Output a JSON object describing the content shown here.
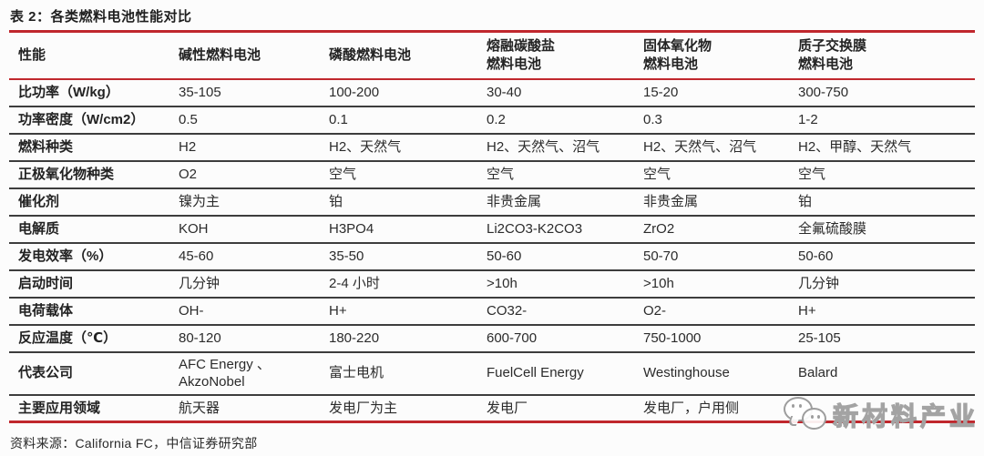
{
  "title": "表 2：各类燃料电池性能对比",
  "table": {
    "columns": [
      "性能",
      "碱性燃料电池",
      "磷酸燃料电池",
      "熔融碳酸盐\n燃料电池",
      "固体氧化物\n燃料电池",
      "质子交换膜\n燃料电池"
    ],
    "rows": [
      {
        "label": "比功率（W/kg）",
        "values": [
          "35-105",
          "100-200",
          "30-40",
          "15-20",
          "300-750"
        ]
      },
      {
        "label": "功率密度（W/cm2）",
        "values": [
          "0.5",
          "0.1",
          "0.2",
          "0.3",
          "1-2"
        ]
      },
      {
        "label": "燃料种类",
        "values": [
          "H2",
          "H2、天然气",
          "H2、天然气、沼气",
          "H2、天然气、沼气",
          "H2、甲醇、天然气"
        ]
      },
      {
        "label": "正极氧化物种类",
        "values": [
          "O2",
          "空气",
          "空气",
          "空气",
          "空气"
        ]
      },
      {
        "label": "催化剂",
        "values": [
          "镍为主",
          "铂",
          "非贵金属",
          "非贵金属",
          "铂"
        ]
      },
      {
        "label": "电解质",
        "values": [
          "KOH",
          "H3PO4",
          "Li2CO3-K2CO3",
          "ZrO2",
          "全氟硫酸膜"
        ]
      },
      {
        "label": "发电效率（%）",
        "values": [
          "45-60",
          "35-50",
          "50-60",
          "50-70",
          "50-60"
        ]
      },
      {
        "label": "启动时间",
        "values": [
          "几分钟",
          "2-4 小时",
          ">10h",
          ">10h",
          "几分钟"
        ]
      },
      {
        "label": "电荷载体",
        "values": [
          "OH-",
          "H+",
          "CO32-",
          "O2-",
          "H+"
        ]
      },
      {
        "label": "反应温度（℃）",
        "values": [
          "80-120",
          "180-220",
          "600-700",
          "750-1000",
          "25-105"
        ]
      },
      {
        "label": "代表公司",
        "values": [
          "AFC  Energy 、\nAkzoNobel",
          "富士电机",
          "FuelCell Energy",
          "Westinghouse",
          "Balard"
        ]
      },
      {
        "label": "主要应用领域",
        "values": [
          "航天器",
          "发电厂为主",
          "发电厂",
          "发电厂，户用侧",
          ""
        ]
      }
    ]
  },
  "footer": {
    "source": "资料来源：California FC，中信证券研究部"
  },
  "watermark": {
    "text": "新材料产业",
    "icon": "chat-bubbles-icon"
  },
  "colors": {
    "accent_red": "#c0272d",
    "row_line": "#3d3d3d",
    "text": "#262626"
  }
}
